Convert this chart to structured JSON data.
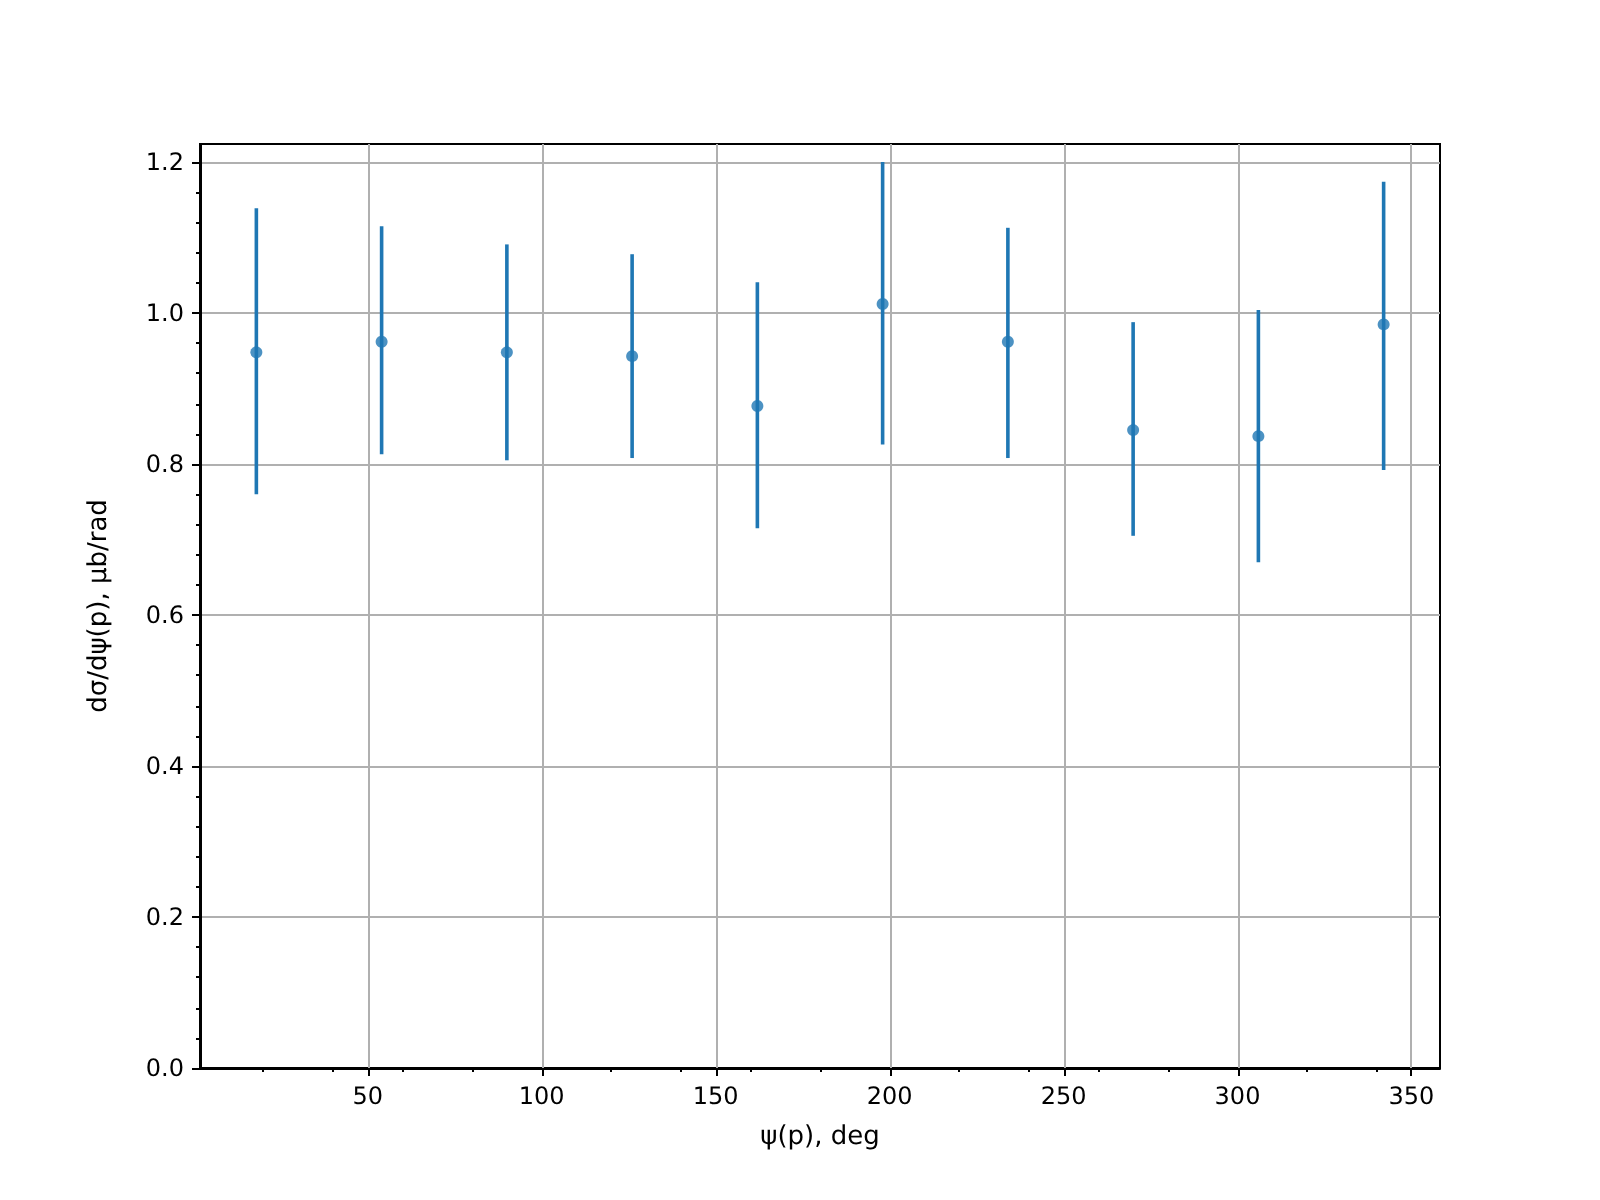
{
  "chart_data": {
    "type": "scatter",
    "xlabel": "ψ(p), deg",
    "ylabel": "dσ/dψ(p), μb/rad",
    "x": [
      18,
      54,
      90,
      126,
      162,
      198,
      234,
      270,
      306,
      342
    ],
    "series": [
      {
        "color": "#1f77b4",
        "values": [
          0.948,
          0.962,
          0.948,
          0.943,
          0.877,
          1.012,
          0.962,
          0.845,
          0.837,
          0.985
        ],
        "errors": [
          [
            0.76,
            1.139
          ],
          [
            0.813,
            1.115
          ],
          [
            0.805,
            1.091
          ],
          [
            0.808,
            1.078
          ],
          [
            0.715,
            1.041
          ],
          [
            0.826,
            1.2
          ],
          [
            0.808,
            1.113
          ],
          [
            0.705,
            0.988
          ],
          [
            0.67,
            1.004
          ],
          [
            0.792,
            1.174
          ]
        ]
      }
    ],
    "xlim": [
      1.8,
      358.2
    ],
    "xticks": [
      50,
      100,
      150,
      200,
      250,
      300,
      350
    ],
    "ylim": [
      0,
      1.224
    ],
    "yticks": [
      {
        "value": 0,
        "label": "0.0"
      },
      0.2,
      0.4,
      0.6,
      0.8,
      {
        "value": 1,
        "label": "1.0"
      },
      1.2
    ],
    "grid": true,
    "marker": "circle"
  }
}
